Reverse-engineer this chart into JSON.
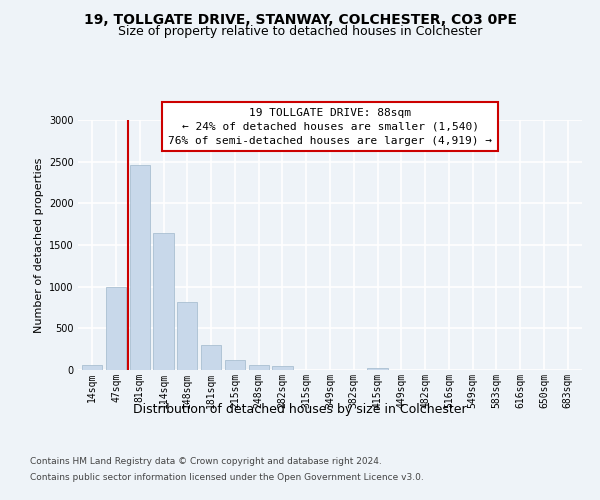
{
  "title1": "19, TOLLGATE DRIVE, STANWAY, COLCHESTER, CO3 0PE",
  "title2": "Size of property relative to detached houses in Colchester",
  "xlabel": "Distribution of detached houses by size in Colchester",
  "ylabel": "Number of detached properties",
  "categories": [
    "14sqm",
    "47sqm",
    "81sqm",
    "114sqm",
    "148sqm",
    "181sqm",
    "215sqm",
    "248sqm",
    "282sqm",
    "315sqm",
    "349sqm",
    "382sqm",
    "415sqm",
    "449sqm",
    "482sqm",
    "516sqm",
    "549sqm",
    "583sqm",
    "616sqm",
    "650sqm",
    "683sqm"
  ],
  "values": [
    60,
    1000,
    2460,
    1650,
    820,
    305,
    125,
    55,
    45,
    0,
    0,
    0,
    30,
    0,
    0,
    0,
    0,
    0,
    0,
    0,
    0
  ],
  "bar_color": "#c8d8ea",
  "bar_edge_color": "#a0b8cc",
  "vline_color": "#cc0000",
  "vline_x_idx": 2,
  "annotation_title": "19 TOLLGATE DRIVE: 88sqm",
  "annotation_line1": "← 24% of detached houses are smaller (1,540)",
  "annotation_line2": "76% of semi-detached houses are larger (4,919) →",
  "ylim": [
    0,
    3000
  ],
  "yticks": [
    0,
    500,
    1000,
    1500,
    2000,
    2500,
    3000
  ],
  "footer1": "Contains HM Land Registry data © Crown copyright and database right 2024.",
  "footer2": "Contains public sector information licensed under the Open Government Licence v3.0.",
  "bg_color": "#eef3f8",
  "grid_color": "#ffffff",
  "title1_fontsize": 10,
  "title2_fontsize": 9,
  "ylabel_fontsize": 8,
  "xlabel_fontsize": 9,
  "tick_fontsize": 7,
  "footer_fontsize": 6.5
}
